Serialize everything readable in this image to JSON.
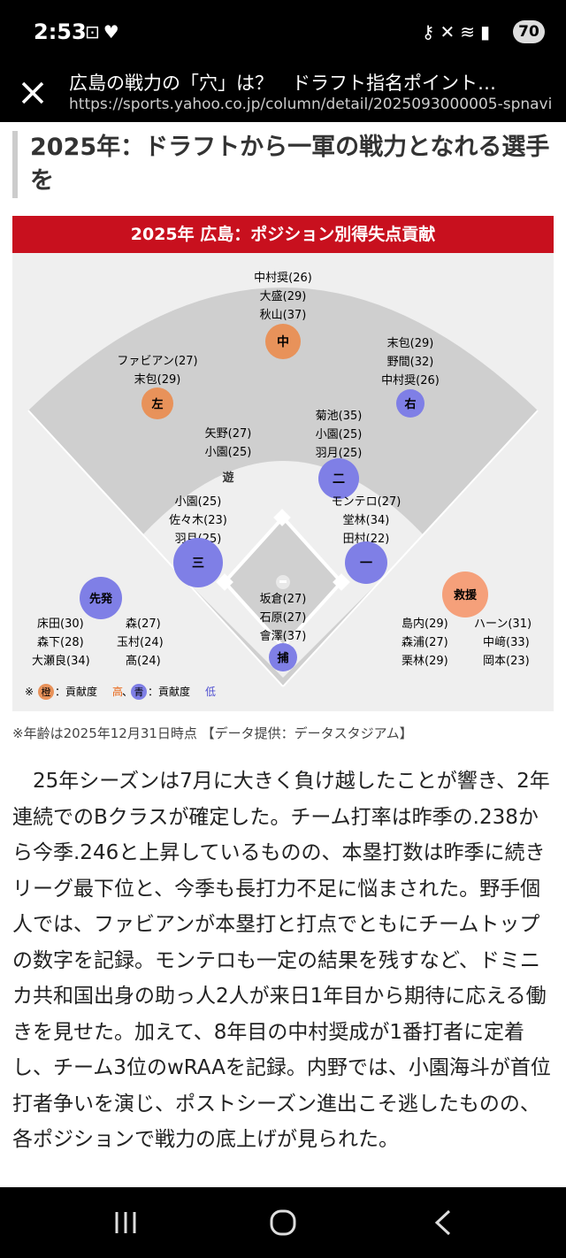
{
  "status": {
    "time": "2:53",
    "battery": "70"
  },
  "browser": {
    "page_title": "広島の戦力の「穴」は？　ドラフト指名ポイント…",
    "url": "https://sports.yahoo.co.jp/column/detail/2025093000005-spnavi"
  },
  "article": {
    "heading": "2025年：ドラフトから一軍の戦力となれる選手を",
    "figure": {
      "title": "2025年 広島：ポジション別得失点貢献",
      "positions": {
        "cf": {
          "badge": "中",
          "names": [
            "中村奨(26)",
            "大盛(29)",
            "秋山(37)"
          ]
        },
        "lf": {
          "badge": "左",
          "names": [
            "ファビアン(27)",
            "末包(29)"
          ]
        },
        "rf": {
          "badge": "右",
          "names": [
            "末包(29)",
            "野間(32)",
            "中村奨(26)"
          ]
        },
        "ss": {
          "badge": "遊",
          "names": [
            "矢野(27)",
            "小園(25)"
          ]
        },
        "2b": {
          "badge": "二",
          "names": [
            "菊池(35)",
            "小園(25)",
            "羽月(25)"
          ]
        },
        "3b": {
          "badge": "三",
          "names": [
            "小園(25)",
            "佐々木(23)",
            "羽月(25)"
          ]
        },
        "1b": {
          "badge": "一",
          "names": [
            "モンテロ(27)",
            "堂林(34)",
            "田村(22)"
          ]
        },
        "c": {
          "badge": "捕",
          "names": [
            "坂倉(27)",
            "石原(27)",
            "會澤(37)"
          ]
        },
        "sp": {
          "badge": "先発",
          "col1": [
            "床田(30)",
            "森下(28)",
            "大瀬良(34)"
          ],
          "col2": [
            "森(27)",
            "玉村(24)",
            "髙(24)"
          ]
        },
        "rp": {
          "badge": "救援",
          "col1": [
            "島内(29)",
            "森浦(27)",
            "栗林(29)"
          ],
          "col2": [
            "ハーン(31)",
            "中﨑(33)",
            "岡本(23)"
          ]
        }
      },
      "legend": {
        "prefix": "※",
        "orange": "橙",
        "text1": "：貢献度",
        "high": "高",
        "sep": "、",
        "blue": "青",
        "text2": "：貢献度",
        "low": "低"
      }
    },
    "caption": "※年齢は2025年12月31日時点 【データ提供：データスタジアム】",
    "paragraph": "25年シーズンは7月に大きく負け越したことが響き、2年連続でのBクラスが確定した。チーム打率は昨季の.238から今季.246と上昇しているものの、本塁打数は昨季に続きリーグ最下位と、今季も長打力不足に悩まされた。野手個人では、ファビアンが本塁打と打点でともにチームトップの数字を記録。モンテロも一定の結果を残すなど、ドミニカ共和国出身の助っ人2人が来日1年目から期待に応える働きを見せた。加えて、8年目の中村奨成が1番打者に定着し、チーム3位のwRAAを記録。内野では、小園海斗が首位打者争いを演じ、ポストシーズン進出こそ逃したものの、各ポジションで戦力の底上げが見られた。"
  },
  "colors": {
    "orange": "#e8925a",
    "blue": "#7f7fe6",
    "red": "#c8101e"
  }
}
